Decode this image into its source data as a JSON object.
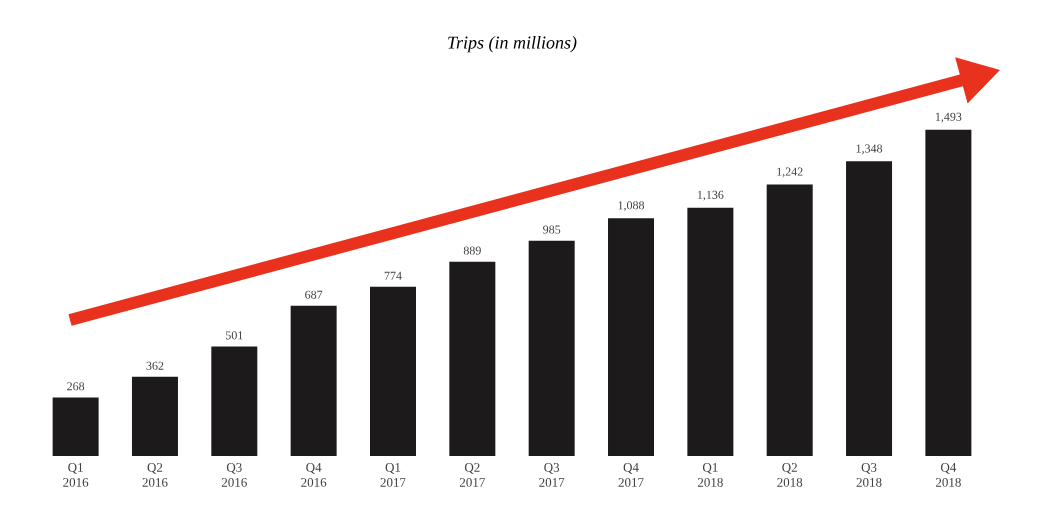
{
  "chart_data": {
    "type": "bar",
    "title": "Trips (in millions)",
    "categories": [
      "Q1 2016",
      "Q2 2016",
      "Q3 2016",
      "Q4 2016",
      "Q1 2017",
      "Q2 2017",
      "Q3 2017",
      "Q4 2017",
      "Q1 2018",
      "Q2 2018",
      "Q3 2018",
      "Q4 2018"
    ],
    "values": [
      268,
      362,
      501,
      687,
      774,
      889,
      985,
      1088,
      1136,
      1242,
      1348,
      1493
    ],
    "value_labels": [
      "268",
      "362",
      "501",
      "687",
      "774",
      "889",
      "985",
      "1,088",
      "1,136",
      "1,242",
      "1,348",
      "1,493"
    ],
    "color": "#1c1a1b",
    "tick_labels": "x"
  }
}
